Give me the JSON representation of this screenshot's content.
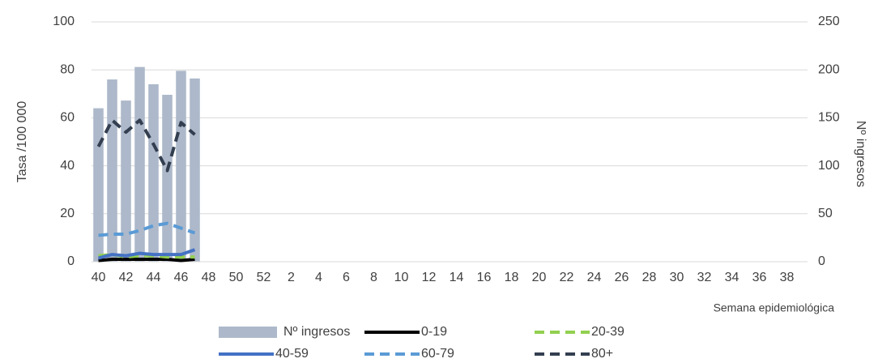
{
  "chart_data": {
    "type": "combo",
    "categories": [
      "40",
      null,
      "42",
      null,
      "44",
      null,
      "46",
      null,
      "48",
      null,
      "50",
      null,
      "52",
      null,
      "2",
      null,
      "4",
      null,
      "6",
      null,
      "8",
      null,
      "10",
      null,
      "12",
      null,
      "14",
      null,
      "16",
      null,
      "18",
      null,
      "20",
      null,
      "22",
      null,
      "24",
      null,
      "26",
      null,
      "28",
      null,
      "30",
      null,
      "32",
      null,
      "34",
      null,
      "36",
      null,
      "38",
      null
    ],
    "ylabel": "Tasa /100 000",
    "y2label": "Nº ingresos",
    "xlabel": "Semana epidemiológica",
    "ylim": [
      0,
      100
    ],
    "yticks": [
      0,
      20,
      40,
      60,
      80,
      100
    ],
    "y2lim": [
      0,
      250
    ],
    "y2ticks": [
      0,
      50,
      100,
      150,
      200,
      250
    ],
    "grid": true,
    "legend": "bottom",
    "series": [
      {
        "name": "Nº ingresos",
        "type": "bar",
        "axis": "y2",
        "color": "#adb9ca",
        "values": [
          160,
          190,
          168,
          203,
          185,
          174,
          199,
          191,
          null,
          null,
          null,
          null,
          null,
          null,
          null,
          null,
          null,
          null,
          null,
          null,
          null,
          null,
          null,
          null,
          null,
          null,
          null,
          null,
          null,
          null,
          null,
          null,
          null,
          null,
          null,
          null,
          null,
          null,
          null,
          null,
          null,
          null,
          null,
          null,
          null,
          null,
          null,
          null,
          null,
          null,
          null,
          null
        ]
      },
      {
        "name": "0-19",
        "type": "line",
        "dashed": false,
        "color": "#000000",
        "values": [
          0.5,
          1,
          1,
          1,
          1,
          1,
          0.5,
          1,
          null,
          null,
          null,
          null,
          null,
          null,
          null,
          null,
          null,
          null,
          null,
          null,
          null,
          null,
          null,
          null,
          null,
          null,
          null,
          null,
          null,
          null,
          null,
          null,
          null,
          null,
          null,
          null,
          null,
          null,
          null,
          null,
          null,
          null,
          null,
          null,
          null,
          null,
          null,
          null,
          null,
          null,
          null,
          null
        ]
      },
      {
        "name": "20-39",
        "type": "line",
        "dashed": true,
        "color": "#92d050",
        "values": [
          2.5,
          3,
          2,
          2.5,
          2.5,
          2,
          2,
          2,
          null,
          null,
          null,
          null,
          null,
          null,
          null,
          null,
          null,
          null,
          null,
          null,
          null,
          null,
          null,
          null,
          null,
          null,
          null,
          null,
          null,
          null,
          null,
          null,
          null,
          null,
          null,
          null,
          null,
          null,
          null,
          null,
          null,
          null,
          null,
          null,
          null,
          null,
          null,
          null,
          null,
          null,
          null,
          null
        ]
      },
      {
        "name": "40-59",
        "type": "line",
        "dashed": false,
        "color": "#4472c4",
        "values": [
          1.5,
          3,
          2.5,
          3.5,
          3,
          3,
          3,
          5,
          null,
          null,
          null,
          null,
          null,
          null,
          null,
          null,
          null,
          null,
          null,
          null,
          null,
          null,
          null,
          null,
          null,
          null,
          null,
          null,
          null,
          null,
          null,
          null,
          null,
          null,
          null,
          null,
          null,
          null,
          null,
          null,
          null,
          null,
          null,
          null,
          null,
          null,
          null,
          null,
          null,
          null,
          null,
          null
        ]
      },
      {
        "name": "60-79",
        "type": "line",
        "dashed": true,
        "color": "#5b9bd5",
        "values": [
          11,
          11.5,
          11.5,
          13,
          15,
          16,
          14,
          12,
          null,
          null,
          null,
          null,
          null,
          null,
          null,
          null,
          null,
          null,
          null,
          null,
          null,
          null,
          null,
          null,
          null,
          null,
          null,
          null,
          null,
          null,
          null,
          null,
          null,
          null,
          null,
          null,
          null,
          null,
          null,
          null,
          null,
          null,
          null,
          null,
          null,
          null,
          null,
          null,
          null,
          null,
          null,
          null
        ]
      },
      {
        "name": "80+",
        "type": "line",
        "dashed": true,
        "color": "#333f50",
        "values": [
          48,
          59,
          54,
          59,
          49,
          38,
          58,
          53,
          null,
          null,
          null,
          null,
          null,
          null,
          null,
          null,
          null,
          null,
          null,
          null,
          null,
          null,
          null,
          null,
          null,
          null,
          null,
          null,
          null,
          null,
          null,
          null,
          null,
          null,
          null,
          null,
          null,
          null,
          null,
          null,
          null,
          null,
          null,
          null,
          null,
          null,
          null,
          null,
          null,
          null,
          null,
          null
        ]
      }
    ]
  }
}
